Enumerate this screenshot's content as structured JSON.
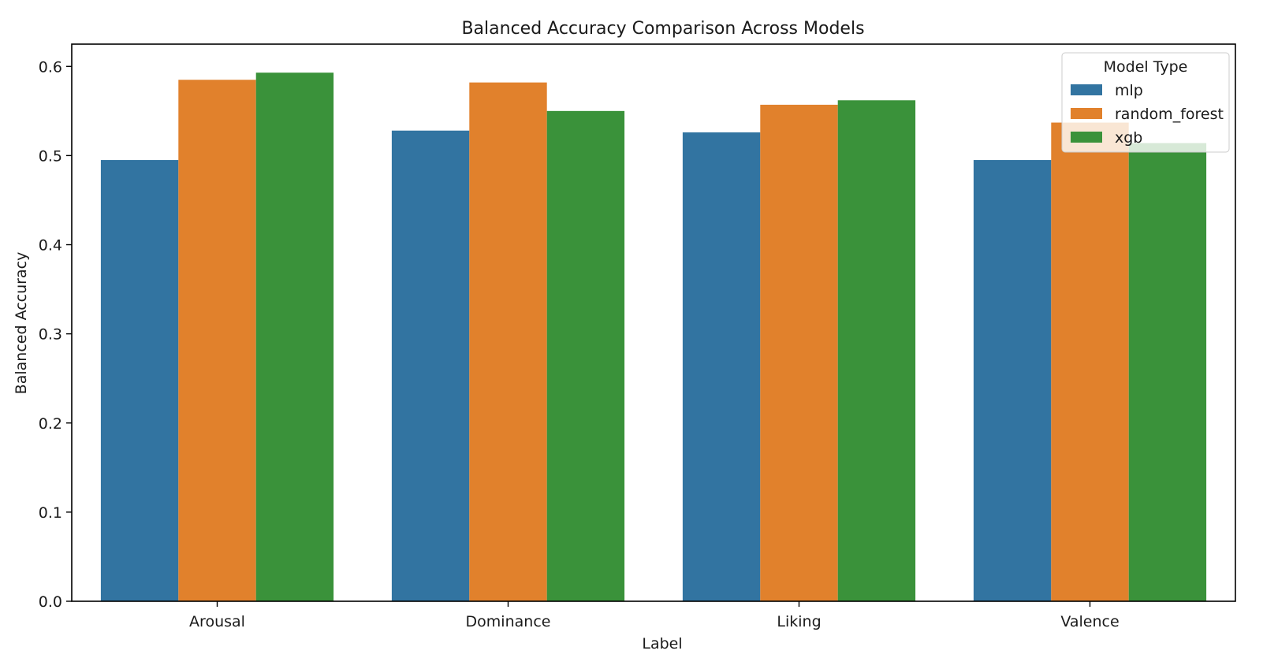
{
  "chart_data": {
    "type": "bar",
    "title": "Balanced Accuracy Comparison Across Models",
    "xlabel": "Label",
    "ylabel": "Balanced Accuracy",
    "categories": [
      "Arousal",
      "Dominance",
      "Liking",
      "Valence"
    ],
    "series": [
      {
        "name": "mlp",
        "color": "#3274a1",
        "values": [
          0.495,
          0.528,
          0.526,
          0.495
        ]
      },
      {
        "name": "random_forest",
        "color": "#e1812c",
        "values": [
          0.585,
          0.582,
          0.557,
          0.537
        ]
      },
      {
        "name": "xgb",
        "color": "#3a923a",
        "values": [
          0.593,
          0.55,
          0.562,
          0.514
        ]
      }
    ],
    "ylim": [
      0,
      0.625
    ],
    "yticks": [
      0.0,
      0.1,
      0.2,
      0.3,
      0.4,
      0.5,
      0.6
    ],
    "ytick_labels": [
      "0.0",
      "0.1",
      "0.2",
      "0.3",
      "0.4",
      "0.5",
      "0.6"
    ],
    "grid": false,
    "legend": {
      "title": "Model Type",
      "position": "top-right"
    }
  }
}
